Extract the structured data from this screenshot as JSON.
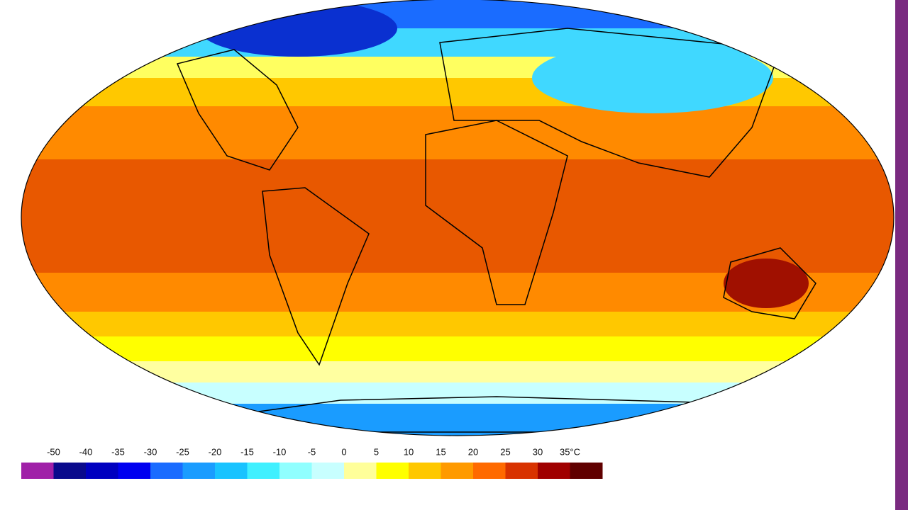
{
  "legend": {
    "labels": [
      "-50",
      "-40",
      "-35",
      "-30",
      "-25",
      "-20",
      "-15",
      "-10",
      "-5",
      "0",
      "5",
      "10",
      "15",
      "20",
      "25",
      "30",
      "35°C"
    ],
    "colors": [
      "#a020a8",
      "#0a0a8c",
      "#0000c0",
      "#0000f0",
      "#1a6cff",
      "#1a9cff",
      "#19c3ff",
      "#40f0ff",
      "#90ffff",
      "#c8ffff",
      "#ffff9a",
      "#ffff00",
      "#ffc800",
      "#ff9a00",
      "#ff6a00",
      "#d83200",
      "#a00000",
      "#600000"
    ]
  }
}
